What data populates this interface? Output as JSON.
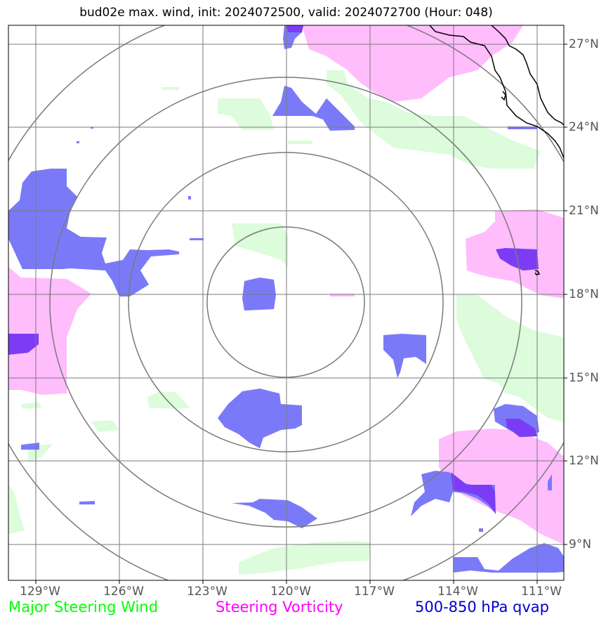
{
  "title": "bud02e max. wind, init: 2024072500, valid: 2024072700 (Hour: 048)",
  "lat_labels": [
    "27°N",
    "24°N",
    "21°N",
    "18°N",
    "15°N",
    "12°N",
    "9°N"
  ],
  "lon_labels": [
    "129°W",
    "126°W",
    "123°W",
    "120°W",
    "117°W",
    "114°W",
    "111°W"
  ],
  "legend": {
    "wind": "Major Steering Wind",
    "vorticity": "Steering Vorticity",
    "qvap": "500-850 hPa qvap"
  },
  "colors": {
    "wind": "#00ff00",
    "vorticity": "#ff00ff",
    "qvap": "#0000cc",
    "wind_fill": "#dcfcdc",
    "vorticity_fill": "#ffbdfc",
    "qvap_fill": "#7a7af8",
    "grid": "#7a7a7a",
    "coast": "#000000"
  }
}
